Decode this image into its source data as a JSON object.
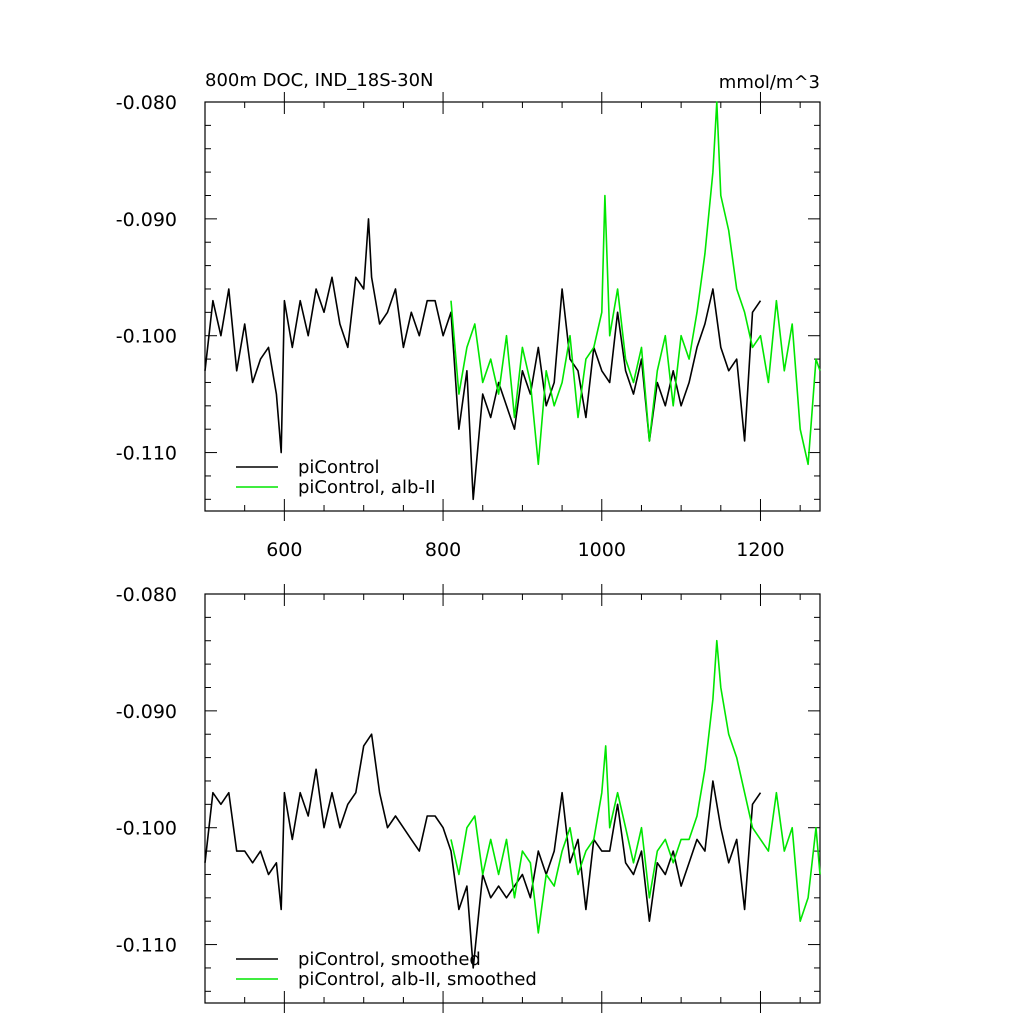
{
  "chart_data": [
    {
      "type": "line",
      "title": "800m DOC, IND_18S-30N",
      "units": "mmol/m^3",
      "xlim": [
        500,
        1275
      ],
      "ylim": [
        -0.115,
        -0.08
      ],
      "xticks": [
        600,
        800,
        1000,
        1200
      ],
      "xtick_labels": [
        "600",
        "800",
        "1000",
        "1200"
      ],
      "yticks": [
        -0.08,
        -0.09,
        -0.1,
        -0.11
      ],
      "ytick_labels": [
        "-0.080",
        "-0.090",
        "-0.100",
        "-0.110"
      ],
      "grid": false,
      "legend_position": "bottom-left",
      "series": [
        {
          "name": "piControl",
          "color": "#000000",
          "x": [
            500,
            510,
            520,
            530,
            540,
            550,
            560,
            570,
            580,
            590,
            596,
            600,
            610,
            620,
            630,
            640,
            650,
            660,
            670,
            680,
            690,
            700,
            706,
            710,
            720,
            730,
            740,
            750,
            760,
            770,
            780,
            790,
            800,
            810,
            820,
            830,
            838,
            850,
            860,
            870,
            880,
            890,
            900,
            910,
            920,
            930,
            940,
            950,
            960,
            970,
            980,
            990,
            1000,
            1010,
            1020,
            1030,
            1040,
            1050,
            1060,
            1070,
            1080,
            1090,
            1100,
            1110,
            1120,
            1130,
            1140,
            1150,
            1160,
            1170,
            1180,
            1190,
            1200
          ],
          "y": [
            -0.103,
            -0.097,
            -0.1,
            -0.096,
            -0.103,
            -0.099,
            -0.104,
            -0.102,
            -0.101,
            -0.105,
            -0.11,
            -0.097,
            -0.101,
            -0.097,
            -0.1,
            -0.096,
            -0.098,
            -0.095,
            -0.099,
            -0.101,
            -0.095,
            -0.096,
            -0.09,
            -0.095,
            -0.099,
            -0.098,
            -0.096,
            -0.101,
            -0.098,
            -0.1,
            -0.097,
            -0.097,
            -0.1,
            -0.098,
            -0.108,
            -0.103,
            -0.114,
            -0.105,
            -0.107,
            -0.104,
            -0.106,
            -0.108,
            -0.103,
            -0.105,
            -0.101,
            -0.106,
            -0.104,
            -0.096,
            -0.102,
            -0.103,
            -0.107,
            -0.101,
            -0.103,
            -0.104,
            -0.098,
            -0.103,
            -0.105,
            -0.102,
            -0.109,
            -0.104,
            -0.106,
            -0.103,
            -0.106,
            -0.104,
            -0.101,
            -0.099,
            -0.096,
            -0.101,
            -0.103,
            -0.102,
            -0.109,
            -0.098,
            -0.097
          ]
        },
        {
          "name": "piControl, alb-II",
          "color": "#00e600",
          "x": [
            810,
            820,
            830,
            840,
            850,
            860,
            870,
            880,
            890,
            900,
            910,
            920,
            930,
            940,
            950,
            960,
            970,
            980,
            990,
            1000,
            1004,
            1010,
            1020,
            1030,
            1040,
            1050,
            1060,
            1070,
            1080,
            1090,
            1100,
            1110,
            1120,
            1130,
            1140,
            1145,
            1150,
            1160,
            1170,
            1180,
            1190,
            1200,
            1210,
            1220,
            1230,
            1240,
            1250,
            1260,
            1270,
            1275
          ],
          "y": [
            -0.097,
            -0.105,
            -0.101,
            -0.099,
            -0.104,
            -0.102,
            -0.105,
            -0.1,
            -0.107,
            -0.101,
            -0.104,
            -0.111,
            -0.103,
            -0.106,
            -0.104,
            -0.1,
            -0.107,
            -0.102,
            -0.101,
            -0.098,
            -0.088,
            -0.1,
            -0.096,
            -0.102,
            -0.104,
            -0.101,
            -0.109,
            -0.103,
            -0.1,
            -0.106,
            -0.1,
            -0.102,
            -0.098,
            -0.093,
            -0.086,
            -0.08,
            -0.088,
            -0.091,
            -0.096,
            -0.098,
            -0.101,
            -0.1,
            -0.104,
            -0.097,
            -0.103,
            -0.099,
            -0.108,
            -0.111,
            -0.102,
            -0.103
          ]
        }
      ]
    },
    {
      "type": "line",
      "xlim": [
        500,
        1275
      ],
      "ylim": [
        -0.115,
        -0.08
      ],
      "xticks": [
        600,
        800,
        1000,
        1200
      ],
      "yticks": [
        -0.08,
        -0.09,
        -0.1,
        -0.11
      ],
      "ytick_labels": [
        "-0.080",
        "-0.090",
        "-0.100",
        "-0.110"
      ],
      "grid": false,
      "legend_position": "bottom-left",
      "series": [
        {
          "name": "piControl, smoothed",
          "color": "#000000",
          "x": [
            500,
            510,
            520,
            530,
            540,
            550,
            560,
            570,
            580,
            590,
            596,
            600,
            610,
            620,
            630,
            640,
            650,
            660,
            670,
            680,
            690,
            700,
            710,
            720,
            730,
            740,
            750,
            760,
            770,
            780,
            790,
            800,
            810,
            820,
            830,
            838,
            850,
            860,
            870,
            880,
            890,
            900,
            910,
            920,
            930,
            940,
            950,
            960,
            970,
            980,
            990,
            1000,
            1010,
            1020,
            1030,
            1040,
            1050,
            1060,
            1070,
            1080,
            1090,
            1100,
            1110,
            1120,
            1130,
            1140,
            1150,
            1160,
            1170,
            1180,
            1190,
            1200
          ],
          "y": [
            -0.103,
            -0.097,
            -0.098,
            -0.097,
            -0.102,
            -0.102,
            -0.103,
            -0.102,
            -0.104,
            -0.103,
            -0.107,
            -0.097,
            -0.101,
            -0.097,
            -0.099,
            -0.095,
            -0.1,
            -0.097,
            -0.1,
            -0.098,
            -0.097,
            -0.093,
            -0.092,
            -0.097,
            -0.1,
            -0.099,
            -0.1,
            -0.101,
            -0.102,
            -0.099,
            -0.099,
            -0.1,
            -0.102,
            -0.107,
            -0.105,
            -0.112,
            -0.104,
            -0.106,
            -0.105,
            -0.106,
            -0.105,
            -0.104,
            -0.106,
            -0.102,
            -0.104,
            -0.102,
            -0.097,
            -0.103,
            -0.101,
            -0.107,
            -0.101,
            -0.102,
            -0.102,
            -0.098,
            -0.103,
            -0.104,
            -0.102,
            -0.108,
            -0.103,
            -0.104,
            -0.102,
            -0.105,
            -0.103,
            -0.101,
            -0.102,
            -0.096,
            -0.1,
            -0.103,
            -0.101,
            -0.107,
            -0.098,
            -0.097
          ]
        },
        {
          "name": "piControl, alb-II, smoothed",
          "color": "#00e600",
          "x": [
            810,
            820,
            830,
            840,
            850,
            860,
            870,
            880,
            890,
            900,
            910,
            920,
            930,
            940,
            950,
            960,
            970,
            980,
            990,
            1000,
            1005,
            1010,
            1020,
            1030,
            1040,
            1050,
            1060,
            1070,
            1080,
            1090,
            1100,
            1110,
            1120,
            1130,
            1140,
            1145,
            1150,
            1160,
            1170,
            1180,
            1190,
            1200,
            1210,
            1220,
            1230,
            1240,
            1250,
            1260,
            1270,
            1275
          ],
          "y": [
            -0.101,
            -0.104,
            -0.1,
            -0.099,
            -0.104,
            -0.101,
            -0.104,
            -0.101,
            -0.106,
            -0.102,
            -0.103,
            -0.109,
            -0.104,
            -0.105,
            -0.102,
            -0.1,
            -0.104,
            -0.102,
            -0.101,
            -0.097,
            -0.093,
            -0.1,
            -0.097,
            -0.1,
            -0.103,
            -0.1,
            -0.106,
            -0.102,
            -0.101,
            -0.103,
            -0.101,
            -0.101,
            -0.099,
            -0.095,
            -0.089,
            -0.084,
            -0.088,
            -0.092,
            -0.094,
            -0.097,
            -0.1,
            -0.101,
            -0.102,
            -0.097,
            -0.102,
            -0.1,
            -0.108,
            -0.106,
            -0.1,
            -0.104
          ]
        }
      ]
    }
  ]
}
